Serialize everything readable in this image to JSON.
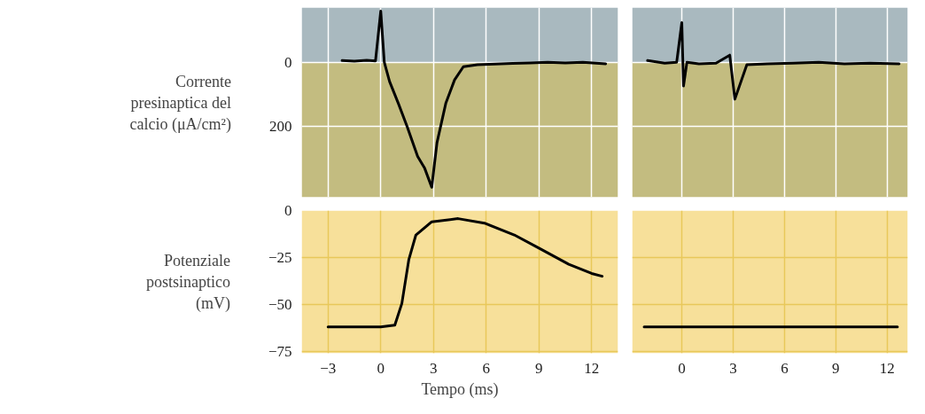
{
  "chart_data": [
    {
      "type": "line",
      "ylabel": "Corrente\npresinaptica del\ncalcio (μA/cm²)",
      "xlim": [
        -4.5,
        13.5
      ],
      "xticks": [
        -3,
        0,
        3,
        6,
        9,
        12
      ],
      "ylim": [
        420,
        -170
      ],
      "yticks": [
        0,
        200
      ],
      "tick_labels": "y",
      "grid": true,
      "bands": [
        {
          "axis": "y",
          "from": -170,
          "to": 0,
          "color": "#a9b9bf"
        },
        {
          "axis": "y",
          "from": 0,
          "to": 420,
          "color": "#c3bc80"
        }
      ],
      "series": [
        {
          "color": "#000000",
          "x": [
            -2.2,
            -1.5,
            -0.8,
            -0.3,
            0.0,
            0.2,
            0.5,
            1.0,
            1.5,
            2.1,
            2.5,
            2.9,
            3.2,
            3.7,
            4.2,
            4.7,
            5.5,
            6.5,
            7.5,
            8.5,
            9.5,
            10.5,
            11.5,
            12.8
          ],
          "values": [
            -5,
            -3,
            -6,
            -4,
            -159,
            0,
            60,
            128,
            200,
            293,
            330,
            389,
            250,
            128,
            55,
            14,
            8,
            6,
            4,
            2,
            0,
            2,
            0,
            5
          ]
        }
      ]
    },
    {
      "type": "line",
      "xlim": [
        -2.9,
        13.2
      ],
      "xticks": [
        0,
        3,
        6,
        9,
        12
      ],
      "ylim": [
        420,
        -170
      ],
      "yticks": [
        0,
        200
      ],
      "tick_labels": false,
      "grid": true,
      "bands": [
        {
          "axis": "y",
          "from": -170,
          "to": 0,
          "color": "#a9b9bf"
        },
        {
          "axis": "y",
          "from": 0,
          "to": 420,
          "color": "#c3bc80"
        }
      ],
      "series": [
        {
          "color": "#000000",
          "x": [
            -2.0,
            -1.0,
            -0.3,
            0.0,
            0.1,
            0.3,
            1.0,
            2.0,
            2.8,
            3.1,
            3.8,
            5.0,
            6.5,
            8.0,
            9.5,
            11.0,
            12.7
          ],
          "values": [
            -5,
            3,
            0,
            -123,
            74,
            0,
            5,
            3,
            -22,
            115,
            8,
            5,
            3,
            0,
            5,
            3,
            5
          ]
        }
      ]
    },
    {
      "type": "line",
      "ylabel": "Potenziale\npostsinaptico\n(mV)",
      "xlabel": "Tempo (ms)",
      "xlim": [
        -4.5,
        13.5
      ],
      "xticks": [
        -3,
        0,
        3,
        6,
        9,
        12
      ],
      "ylim": [
        -76,
        0
      ],
      "yticks": [
        -75,
        -50,
        -25,
        0
      ],
      "grid": true,
      "bands": [
        {
          "axis": "y",
          "from": -76,
          "to": 0,
          "color": "#f7e09a"
        }
      ],
      "series": [
        {
          "color": "#000000",
          "x": [
            -3.0,
            0.0,
            0.8,
            1.2,
            1.6,
            2.0,
            2.9,
            4.4,
            5.9,
            7.6,
            9.0,
            10.7,
            12.0,
            12.6
          ],
          "values": [
            -62,
            -62,
            -61,
            -49.5,
            -26,
            -13,
            -6,
            -4.3,
            -6.7,
            -13,
            -20,
            -28.6,
            -33.5,
            -35
          ]
        }
      ]
    },
    {
      "type": "line",
      "xlim": [
        -2.9,
        13.2
      ],
      "xticks": [
        0,
        3,
        6,
        9,
        12
      ],
      "ylim": [
        -76,
        0
      ],
      "yticks": [
        -75,
        -50,
        -25,
        0
      ],
      "tick_labels": "x",
      "grid": true,
      "bands": [
        {
          "axis": "y",
          "from": -76,
          "to": 0,
          "color": "#f7e09a"
        }
      ],
      "series": [
        {
          "color": "#000000",
          "x": [
            -2.2,
            12.6
          ],
          "values": [
            -62,
            -62
          ]
        }
      ]
    }
  ]
}
